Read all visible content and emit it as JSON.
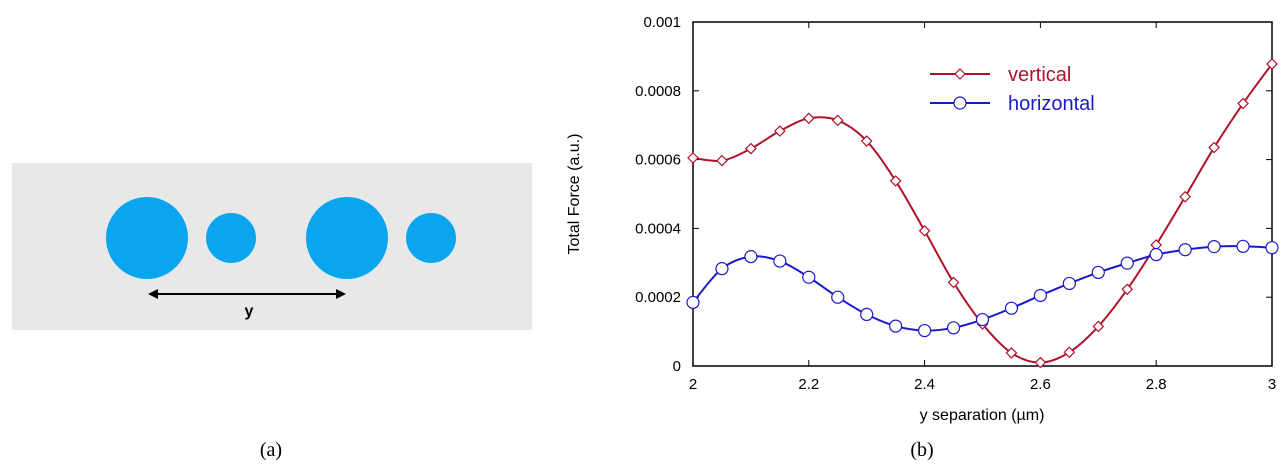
{
  "panel_a": {
    "caption": "(a)",
    "arrow_label": "y",
    "colors": {
      "background": "#e8e8e8",
      "disk": "#0aa5ef",
      "arrow": "#000000"
    }
  },
  "panel_b": {
    "caption": "(b)"
  },
  "chart_data": {
    "type": "line",
    "xlabel": "y separation (µm)",
    "ylabel": "Total Force (a.u.)",
    "xlim": [
      2,
      3
    ],
    "ylim": [
      0,
      0.001
    ],
    "x_ticks": [
      "2",
      "2.2",
      "2.4",
      "2.6",
      "2.8",
      "3"
    ],
    "y_ticks": [
      "0",
      "0.0002",
      "0.0004",
      "0.0006",
      "0.0008",
      "0.001"
    ],
    "legend_position": "top-right",
    "x": [
      2.0,
      2.05,
      2.1,
      2.15,
      2.2,
      2.25,
      2.3,
      2.35,
      2.4,
      2.45,
      2.5,
      2.55,
      2.6,
      2.65,
      2.7,
      2.75,
      2.8,
      2.85,
      2.9,
      2.95,
      3.0
    ],
    "series": [
      {
        "name": "vertical",
        "color": "#b0122a",
        "marker": "diamond",
        "values": [
          0.000605,
          0.000597,
          0.000632,
          0.000683,
          0.00072,
          0.000714,
          0.000654,
          0.000538,
          0.000393,
          0.000243,
          0.000122,
          3.8e-05,
          1e-05,
          4e-05,
          0.000115,
          0.000223,
          0.000352,
          0.000492,
          0.000635,
          0.000763,
          0.000878
        ]
      },
      {
        "name": "horizontal",
        "color": "#1a1acc",
        "marker": "circle",
        "values": [
          0.000185,
          0.000283,
          0.000318,
          0.000305,
          0.000258,
          0.0002,
          0.00015,
          0.000116,
          0.000103,
          0.000111,
          0.000135,
          0.000168,
          0.000205,
          0.00024,
          0.000272,
          0.000299,
          0.000324,
          0.000338,
          0.000347,
          0.000348,
          0.000344
        ]
      }
    ]
  }
}
